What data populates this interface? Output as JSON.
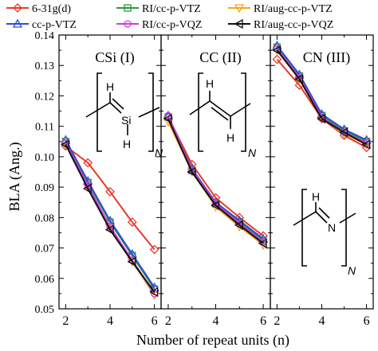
{
  "chart_data": {
    "type": "line",
    "xlabel": "Number of repeat units (n)",
    "ylabel": "BLA (Ang.)",
    "ylim": [
      0.05,
      0.14
    ],
    "yticks": [
      "0.05",
      "0.06",
      "0.07",
      "0.08",
      "0.09",
      "0.10",
      "0.11",
      "0.12",
      "0.13",
      "0.14"
    ],
    "xticks": [
      "2",
      "4",
      "6"
    ],
    "grid": false,
    "legend_position": "top",
    "legend": [
      {
        "name": "6-31g(d)",
        "color": "#e8392b",
        "marker": "diamond"
      },
      {
        "name": "RI/cc-p-VTZ",
        "color": "#2a9a3c",
        "marker": "square"
      },
      {
        "name": "RI/aug-cc-p-VTZ",
        "color": "#f5a623",
        "marker": "triangle-down"
      },
      {
        "name": "cc-p-VTZ",
        "color": "#2b4fd6",
        "marker": "triangle-up"
      },
      {
        "name": "RI/cc-p-VQZ",
        "color": "#d63bd6",
        "marker": "circle"
      },
      {
        "name": "RI/aug-cc-p-VQZ",
        "color": "#111111",
        "marker": "triangle-left"
      }
    ],
    "x": [
      2,
      3,
      4,
      5,
      6
    ],
    "panels": [
      {
        "label": "CSi (I)",
        "chem": {
          "top": "H",
          "middle": "Si",
          "bottom": "H",
          "subscript": "N"
        },
        "series": [
          {
            "name": "6-31g(d)",
            "values": [
              0.1035,
              0.098,
              0.0885,
              0.0785,
              0.0695
            ]
          },
          {
            "name": "RI/cc-p-VTZ",
            "values": [
              0.105,
              0.0915,
              0.0785,
              0.0675,
              0.0565
            ]
          },
          {
            "name": "RI/aug-cc-p-VTZ",
            "values": [
              0.104,
              0.09,
              0.0765,
              0.0655,
              0.0545
            ]
          },
          {
            "name": "cc-p-VTZ",
            "values": [
              0.1055,
              0.092,
              0.079,
              0.068,
              0.057
            ]
          },
          {
            "name": "RI/cc-p-VQZ",
            "values": [
              0.1045,
              0.0905,
              0.077,
              0.066,
              0.055
            ]
          },
          {
            "name": "RI/aug-cc-p-VQZ",
            "values": [
              0.104,
              0.0895,
              0.076,
              0.0655,
              0.0555
            ]
          }
        ]
      },
      {
        "label": "CC (II)",
        "chem": {
          "top": "H",
          "middle": "",
          "bottom": "H",
          "subscript": "N"
        },
        "series": [
          {
            "name": "6-31g(d)",
            "values": [
              0.113,
              0.0975,
              0.0865,
              0.08,
              0.074
            ]
          },
          {
            "name": "RI/cc-p-VTZ",
            "values": [
              0.113,
              0.0955,
              0.0845,
              0.0785,
              0.0725
            ]
          },
          {
            "name": "RI/aug-cc-p-VTZ",
            "values": [
              0.1115,
              0.095,
              0.0835,
              0.077,
              0.071
            ]
          },
          {
            "name": "cc-p-VTZ",
            "values": [
              0.1135,
              0.096,
              0.085,
              0.079,
              0.073
            ]
          },
          {
            "name": "RI/cc-p-VQZ",
            "values": [
              0.1135,
              0.0955,
              0.0845,
              0.078,
              0.072
            ]
          },
          {
            "name": "RI/aug-cc-p-VQZ",
            "values": [
              0.1125,
              0.095,
              0.084,
              0.0775,
              0.0715
            ]
          }
        ]
      },
      {
        "label": "CN (III)",
        "chem": {
          "top": "H",
          "middle": "N",
          "bottom": "",
          "subscript": "N"
        },
        "series": [
          {
            "name": "6-31g(d)",
            "values": [
              0.132,
              0.1235,
              0.1125,
              0.107,
              0.103
            ]
          },
          {
            "name": "RI/cc-p-VTZ",
            "values": [
              0.136,
              0.1265,
              0.1135,
              0.1085,
              0.105
            ]
          },
          {
            "name": "RI/aug-cc-p-VTZ",
            "values": [
              0.135,
              0.1255,
              0.113,
              0.1075,
              0.104
            ]
          },
          {
            "name": "cc-p-VTZ",
            "values": [
              0.1365,
              0.127,
              0.114,
              0.109,
              0.1055
            ]
          },
          {
            "name": "RI/cc-p-VQZ",
            "values": [
              0.1355,
              0.126,
              0.113,
              0.108,
              0.1045
            ]
          },
          {
            "name": "RI/aug-cc-p-VQZ",
            "values": [
              0.135,
              0.1255,
              0.1125,
              0.108,
              0.104
            ]
          }
        ]
      }
    ]
  }
}
